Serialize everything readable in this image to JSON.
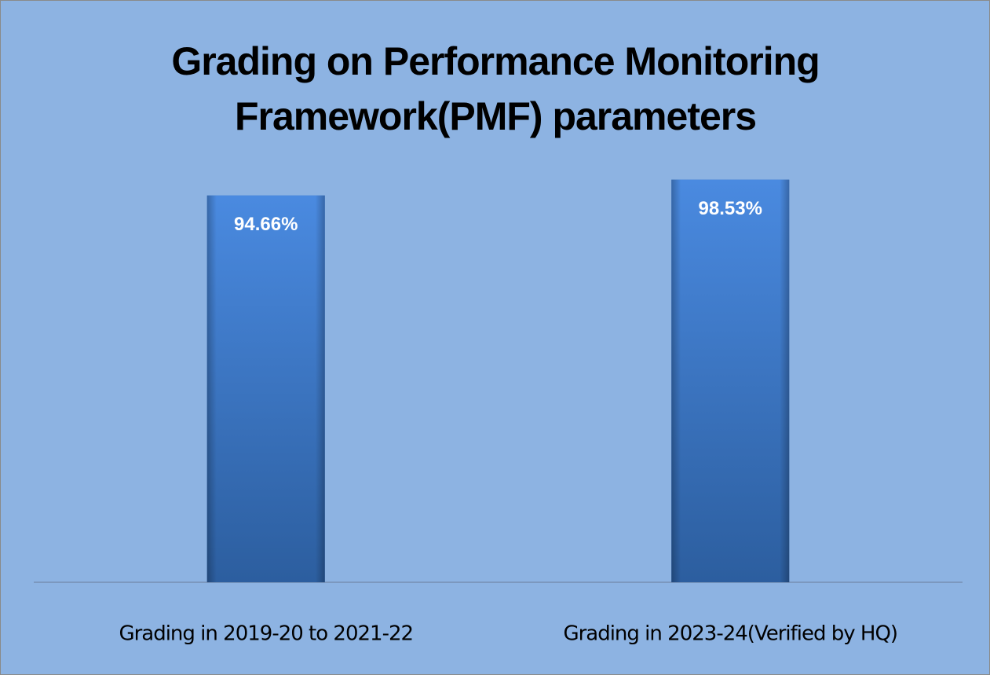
{
  "chart_data": {
    "type": "bar",
    "title": "Grading on Performance Monitoring Framework(PMF) parameters",
    "categories": [
      "Grading in 2019-20 to 2021-22",
      "Grading in 2023-24(Verified by HQ)"
    ],
    "values": [
      94.66,
      98.53
    ],
    "value_labels": [
      "94.66%",
      "98.53%"
    ],
    "color": "#3d78c9",
    "ylim": [
      0,
      100
    ]
  }
}
